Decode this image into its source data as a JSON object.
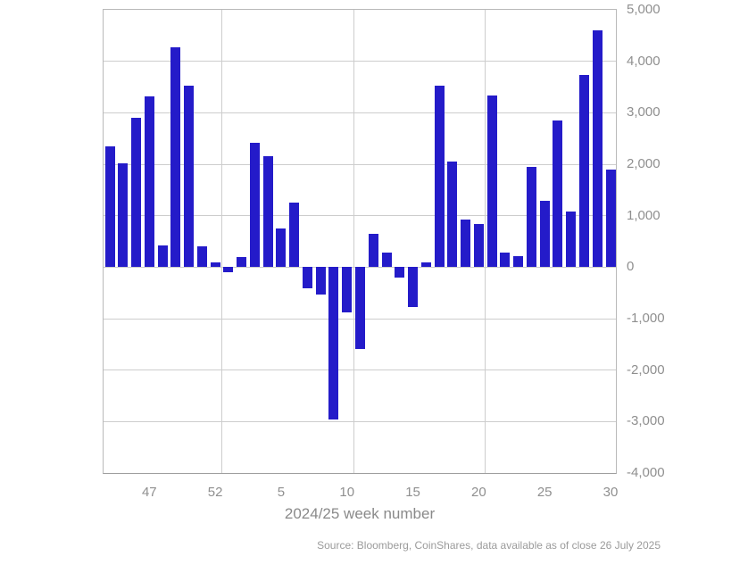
{
  "chart_data": {
    "type": "bar",
    "title": "",
    "xlabel": "2024/25 week number",
    "ylabel": "",
    "ylim": [
      -4000,
      5000
    ],
    "y_tick_interval": 1000,
    "y_tick_labels": [
      "5,000",
      "4,000",
      "3,000",
      "2,000",
      "1,000",
      "0",
      "-1,000",
      "-2,000",
      "-3,000",
      "-4,000"
    ],
    "categories": [
      "44",
      "45",
      "46",
      "47",
      "48",
      "49",
      "50",
      "51",
      "52",
      "1",
      "2",
      "3",
      "4",
      "5",
      "6",
      "7",
      "8",
      "9",
      "10",
      "11",
      "12",
      "13",
      "14",
      "15",
      "16",
      "17",
      "18",
      "19",
      "20",
      "21",
      "22",
      "23",
      "24",
      "25",
      "26",
      "27",
      "28",
      "29",
      "30"
    ],
    "values": [
      2350,
      2020,
      2900,
      3320,
      420,
      4270,
      3520,
      400,
      100,
      -90,
      200,
      2420,
      2160,
      760,
      1260,
      -410,
      -530,
      -2960,
      -880,
      -1590,
      640,
      290,
      -200,
      -780,
      100,
      3520,
      2060,
      930,
      830,
      3340,
      290,
      210,
      1950,
      1290,
      2850,
      1080,
      3740,
      4600,
      1900
    ],
    "x_tick_indices": [
      3,
      8,
      13,
      18,
      23,
      28,
      33,
      38
    ],
    "x_tick_labels": [
      "47",
      "52",
      "5",
      "10",
      "15",
      "20",
      "25",
      "30"
    ],
    "vertical_gridline_after_indices": [
      8,
      18,
      28
    ],
    "grid": "on",
    "legend_position": "none",
    "bar_color": "#241bc9",
    "grid_color": "#cdcdcd",
    "axis_frame_color": "#b9b9b9",
    "label_color": "#8f8f8f",
    "source": "Source: Bloomberg, CoinShares, data available as of close 26 July 2025"
  }
}
